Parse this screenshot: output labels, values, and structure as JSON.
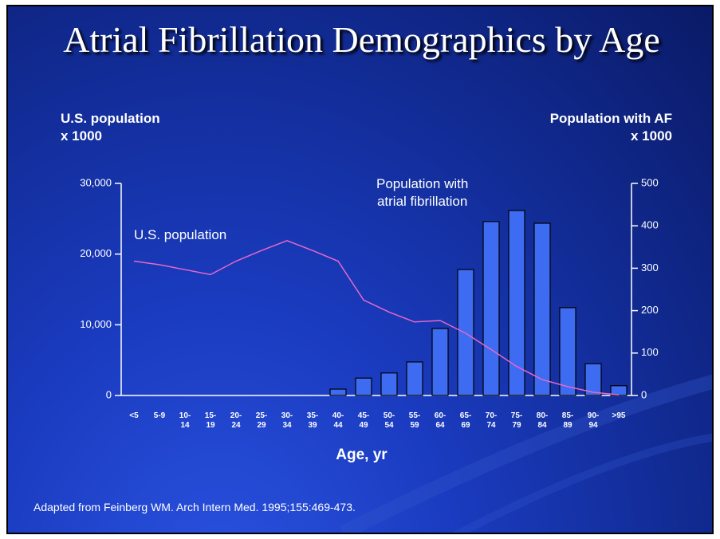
{
  "chart_data": {
    "type": "bar",
    "title": "Atrial Fibrillation Demographics by Age",
    "y_label": "U.S. population\nx 1000",
    "y2_label": "Population with AF\nx 1000",
    "x_label": "Age, yr",
    "source": "Adapted from Feinberg WM. Arch Intern Med. 1995;155:469-473.",
    "categories": [
      "<5",
      "5-9",
      "10-14",
      "15-19",
      "20-24",
      "25-29",
      "30-34",
      "35-39",
      "40-44",
      "45-49",
      "50-54",
      "55-59",
      "60-64",
      "65-69",
      "70-74",
      "75-79",
      "80-84",
      "85-89",
      "90-94",
      ">95"
    ],
    "series": [
      {
        "name": "U.S. population",
        "type": "line",
        "color": "#e867c8",
        "values": [
          19000,
          18500,
          17800,
          17100,
          19000,
          20500,
          21900,
          20500,
          19000,
          13500,
          11800,
          10400,
          10600,
          8800,
          6500,
          4100,
          2250,
          1250,
          450,
          100
        ]
      },
      {
        "name": "Population with\natrial fibrillation",
        "type": "bar",
        "axis": "y2",
        "color": "#3d6cf2",
        "values": [
          0,
          0,
          0,
          0,
          0,
          0,
          0,
          0,
          15,
          41,
          53,
          79,
          158,
          297,
          410,
          436,
          406,
          207,
          75,
          23
        ]
      }
    ],
    "ylim": [
      0,
      30000
    ],
    "yticks": [
      0,
      {
        "value": 10000,
        "label": "10,000"
      },
      {
        "value": 20000,
        "label": "20,000"
      },
      {
        "value": 30000,
        "label": "30,000"
      }
    ],
    "y2lim": [
      0,
      500
    ],
    "y2ticks": [
      0,
      100,
      200,
      300,
      400,
      500
    ]
  }
}
